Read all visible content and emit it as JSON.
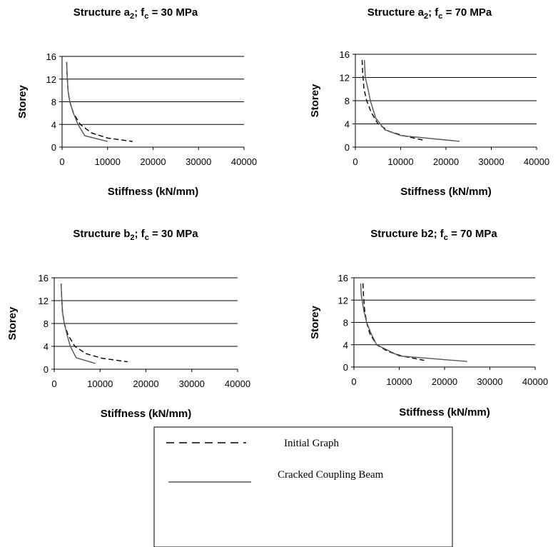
{
  "chart_data": [
    {
      "type": "line",
      "title": {
        "before": "Structure a",
        "sub": "2",
        "mid": "; f",
        "sub2": "c",
        "after": " = 30 MPa"
      },
      "xlabel": "Stiffness (kN/mm)",
      "ylabel": "Storey",
      "xlim": [
        0,
        40000
      ],
      "ylim": [
        0,
        16
      ],
      "xticks": [
        "0",
        "10000",
        "20000",
        "30000",
        "40000"
      ],
      "yticks": [
        "0",
        "4",
        "8",
        "12",
        "16"
      ],
      "grid": "horizontal",
      "series": [
        {
          "name": "Initial Graph",
          "style": "dashed",
          "x": [
            1000,
            1100,
            1300,
            1700,
            2500,
            4000,
            6500,
            10000,
            15500
          ],
          "y": [
            15,
            13,
            10,
            8,
            6,
            4,
            2.5,
            1.6,
            1
          ]
        },
        {
          "name": "Cracked Coupling Beam",
          "style": "solid",
          "x": [
            1000,
            1100,
            1300,
            1700,
            2500,
            3500,
            5000,
            10000
          ],
          "y": [
            15,
            13,
            10,
            8,
            6,
            4,
            2,
            1
          ]
        }
      ]
    },
    {
      "type": "line",
      "title": {
        "before": "Structure a",
        "sub": "2",
        "mid": "; f",
        "sub2": "c",
        "after": " = 70 MPa"
      },
      "xlabel": "Stiffness (kN/mm)",
      "ylabel": "Storey",
      "xlim": [
        0,
        40000
      ],
      "ylim": [
        0,
        16
      ],
      "xticks": [
        "0",
        "10000",
        "20000",
        "30000",
        "40000"
      ],
      "yticks": [
        "0",
        "4",
        "8",
        "12",
        "16"
      ],
      "grid": "horizontal",
      "series": [
        {
          "name": "Initial Graph",
          "style": "dashed",
          "x": [
            1500,
            1600,
            1900,
            2500,
            3500,
            5000,
            7500,
            10500,
            15000
          ],
          "y": [
            15,
            13,
            10,
            8,
            6,
            4,
            2.7,
            2,
            1.2
          ]
        },
        {
          "name": "Cracked Coupling Beam",
          "style": "solid",
          "x": [
            2000,
            2200,
            2800,
            3300,
            4500,
            6500,
            10000,
            23000
          ],
          "y": [
            15,
            12,
            10,
            8,
            5,
            3,
            2,
            1
          ]
        }
      ]
    },
    {
      "type": "line",
      "title": {
        "before": "Structure b",
        "sub": "2",
        "mid": "; f",
        "sub2": "c",
        "after": " = 30 MPa"
      },
      "xlabel": "Stiffness (kN/mm)",
      "ylabel": "Storey",
      "xlim": [
        0,
        40000
      ],
      "ylim": [
        0,
        16
      ],
      "xticks": [
        "0",
        "10000",
        "20000",
        "30000",
        "40000"
      ],
      "yticks": [
        "0",
        "4",
        "8",
        "12",
        "16"
      ],
      "grid": "horizontal",
      "series": [
        {
          "name": "Initial Graph",
          "style": "dashed",
          "x": [
            1500,
            1600,
            1800,
            2200,
            3000,
            4500,
            7000,
            10500,
            16000
          ],
          "y": [
            15,
            13,
            10,
            8,
            6,
            4,
            2.7,
            1.9,
            1.3
          ]
        },
        {
          "name": "Cracked Coupling Beam",
          "style": "solid",
          "x": [
            1500,
            1600,
            1800,
            2200,
            2800,
            3500,
            4800,
            9000
          ],
          "y": [
            15,
            13,
            10,
            8,
            6,
            4,
            2,
            1
          ]
        }
      ]
    },
    {
      "type": "line",
      "title": {
        "before": "Structure b2; f",
        "sub": "",
        "mid": "",
        "sub2": "c",
        "after": " = 70 MPa"
      },
      "xlabel": "Stiffness (kN/mm)",
      "ylabel": "Storey",
      "xlim": [
        0,
        40000
      ],
      "ylim": [
        0,
        16
      ],
      "xticks": [
        "0",
        "10000",
        "20000",
        "30000",
        "40000"
      ],
      "yticks": [
        "0",
        "4",
        "8",
        "12",
        "16"
      ],
      "grid": "horizontal",
      "series": [
        {
          "name": "Initial Graph",
          "style": "dashed",
          "x": [
            2000,
            2100,
            2400,
            2800,
            3500,
            5000,
            7500,
            10500,
            15500
          ],
          "y": [
            15,
            13,
            10,
            8,
            6,
            4,
            2.8,
            2,
            1.2
          ]
        },
        {
          "name": "Cracked Coupling Beam",
          "style": "solid",
          "x": [
            1500,
            1600,
            2200,
            2800,
            3800,
            5000,
            10000,
            25000
          ],
          "y": [
            15,
            13,
            10,
            8,
            6,
            4,
            2,
            1
          ]
        }
      ]
    }
  ],
  "legend": {
    "entries": [
      {
        "label": "Initial Graph",
        "style": "dashed"
      },
      {
        "label": "Cracked Coupling Beam",
        "style": "solid"
      }
    ]
  }
}
